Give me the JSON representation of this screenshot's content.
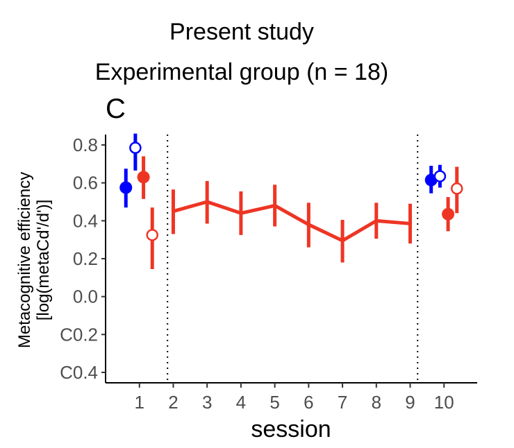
{
  "chart_data": {
    "type": "scatter",
    "title_lines": [
      "Present study",
      "Experimental group (n = 18)"
    ],
    "panel_letter": "C",
    "xlabel": "session",
    "ylabel_lines": [
      "Metacognitive efficiency",
      "[log(metaCd'/d')]"
    ],
    "x_ticks": [
      1,
      2,
      3,
      4,
      5,
      6,
      7,
      8,
      9,
      10
    ],
    "x_tick_labels": [
      "1",
      "2",
      "3",
      "4",
      "5",
      "6",
      "7",
      "8",
      "9",
      "10"
    ],
    "y_ticks": [
      -0.4,
      -0.2,
      0.0,
      0.2,
      0.4,
      0.6,
      0.8
    ],
    "y_tick_labels": [
      "C0.4",
      "C0.2",
      "0.0",
      "0.2",
      "0.4",
      "0.6",
      "0.8"
    ],
    "xlim": [
      0.0,
      10.98
    ],
    "ylim": [
      -0.455,
      0.855
    ],
    "vlines": [
      1.83,
      9.22
    ],
    "colors": {
      "blue": "#0000ff",
      "red": "#ee3524"
    },
    "training_line": {
      "color": "#ee3524",
      "x": [
        2,
        3,
        4,
        5,
        6,
        7,
        8,
        9
      ],
      "y": [
        0.45,
        0.5,
        0.44,
        0.48,
        0.38,
        0.295,
        0.4,
        0.385
      ],
      "lower": [
        0.33,
        0.385,
        0.325,
        0.37,
        0.26,
        0.18,
        0.305,
        0.28
      ],
      "upper": [
        0.565,
        0.61,
        0.555,
        0.59,
        0.495,
        0.405,
        0.495,
        0.49
      ]
    },
    "points": [
      {
        "x": 0.6,
        "y": 0.575,
        "lower": 0.47,
        "upper": 0.675,
        "color": "#0000ff",
        "filled": true
      },
      {
        "x": 0.88,
        "y": 0.785,
        "lower": 0.665,
        "upper": 0.86,
        "color": "#0000ff",
        "filled": false
      },
      {
        "x": 1.12,
        "y": 0.63,
        "lower": 0.515,
        "upper": 0.74,
        "color": "#ee3524",
        "filled": true
      },
      {
        "x": 1.38,
        "y": 0.325,
        "lower": 0.145,
        "upper": 0.47,
        "color": "#ee3524",
        "filled": false
      },
      {
        "x": 9.62,
        "y": 0.615,
        "lower": 0.545,
        "upper": 0.69,
        "color": "#0000ff",
        "filled": true
      },
      {
        "x": 9.88,
        "y": 0.635,
        "lower": 0.575,
        "upper": 0.695,
        "color": "#0000ff",
        "filled": false
      },
      {
        "x": 10.12,
        "y": 0.435,
        "lower": 0.345,
        "upper": 0.525,
        "color": "#ee3524",
        "filled": true
      },
      {
        "x": 10.38,
        "y": 0.57,
        "lower": 0.44,
        "upper": 0.685,
        "color": "#ee3524",
        "filled": false
      }
    ]
  }
}
